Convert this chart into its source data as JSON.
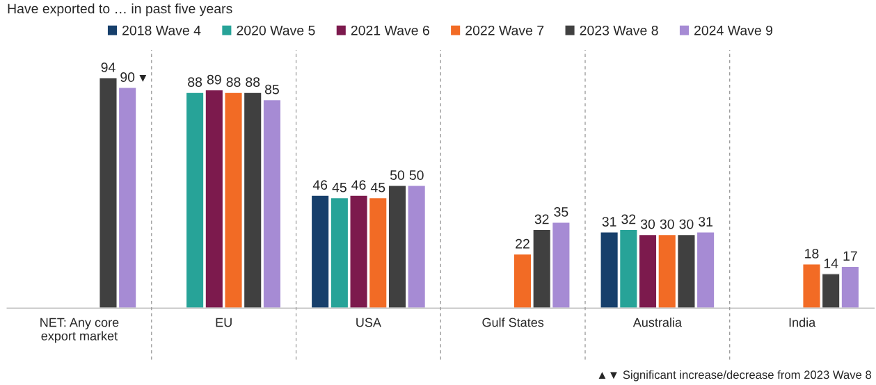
{
  "chart_data": {
    "type": "bar",
    "title": "Have exported to … in past five years",
    "categories": [
      "NET: Any core\nexport market",
      "EU",
      "USA",
      "Gulf States",
      "Australia",
      "India"
    ],
    "series": [
      {
        "name": "2018 Wave 4",
        "color": "#173f6b",
        "values": [
          null,
          null,
          46,
          null,
          31,
          null
        ]
      },
      {
        "name": "2020 Wave 5",
        "color": "#27a398",
        "values": [
          null,
          88,
          45,
          null,
          32,
          null
        ]
      },
      {
        "name": "2021 Wave 6",
        "color": "#7c1a4d",
        "values": [
          null,
          89,
          46,
          null,
          30,
          null
        ]
      },
      {
        "name": "2022 Wave 7",
        "color": "#f26b25",
        "values": [
          null,
          88,
          45,
          22,
          30,
          18
        ]
      },
      {
        "name": "2023 Wave 8",
        "color": "#404040",
        "values": [
          94,
          88,
          50,
          32,
          30,
          14
        ]
      },
      {
        "name": "2024 Wave 9",
        "color": "#a68bd4",
        "values": [
          90,
          85,
          50,
          35,
          31,
          17
        ]
      }
    ],
    "data_labels": true,
    "legend": "top",
    "grid": false,
    "annotations": [
      "▼",
      "▲▼ Significant increase/decrease from 2023 Wave 8"
    ]
  }
}
